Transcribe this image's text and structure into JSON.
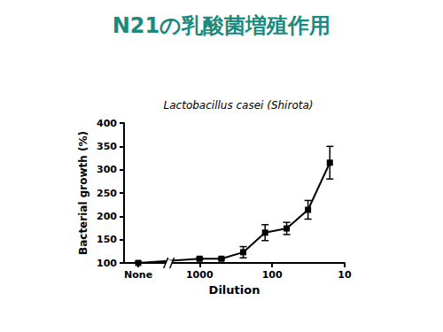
{
  "chart_data": {
    "type": "line",
    "title": "N21の乳酸菌増殖作用",
    "subtitle": "Lactobacillus casei (Shirota)",
    "x_label": "Dilution",
    "y_label": "Bacterial growth (%)",
    "x": [
      7000,
      1000,
      500,
      250,
      125,
      63,
      32,
      16
    ],
    "values": [
      100,
      109,
      109,
      123,
      165,
      174,
      214,
      315
    ],
    "errors": [
      2,
      2,
      2,
      12,
      17,
      13,
      20,
      35
    ],
    "color": "#000000",
    "marker": "square",
    "log": "x",
    "xlim": [
      11000,
      10
    ],
    "xticks": [
      {
        "value": 7000,
        "label": "None"
      },
      1000,
      100,
      10
    ],
    "ylim": [
      100,
      400
    ],
    "yticks": [
      100,
      150,
      200,
      250,
      300,
      350,
      400
    ],
    "grid": false
  }
}
